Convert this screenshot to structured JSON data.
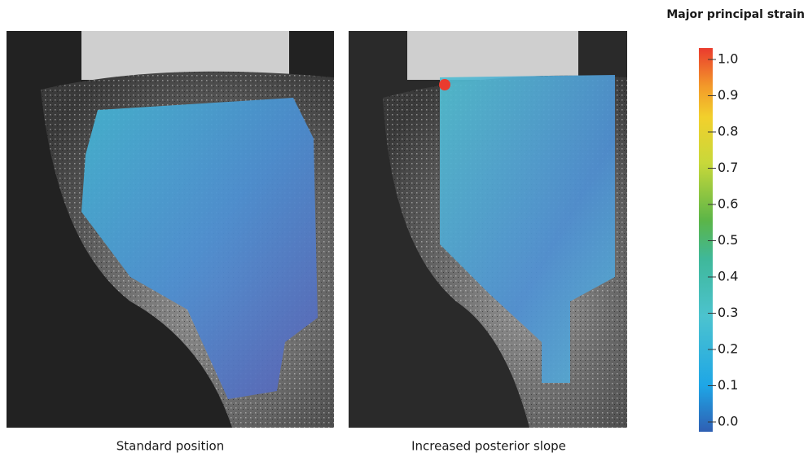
{
  "panels": [
    {
      "caption": "Standard position"
    },
    {
      "caption": "Increased posterior slope"
    }
  ],
  "colorbar": {
    "title": "Major principal strain",
    "lim": [
      0,
      1
    ],
    "ticks": [
      {
        "value": 0,
        "label": "0.0"
      },
      0.1,
      0.2,
      0.3,
      0.4,
      0.5,
      0.6,
      0.7,
      0.8,
      0.9,
      {
        "value": 1,
        "label": "1.0"
      }
    ]
  }
}
